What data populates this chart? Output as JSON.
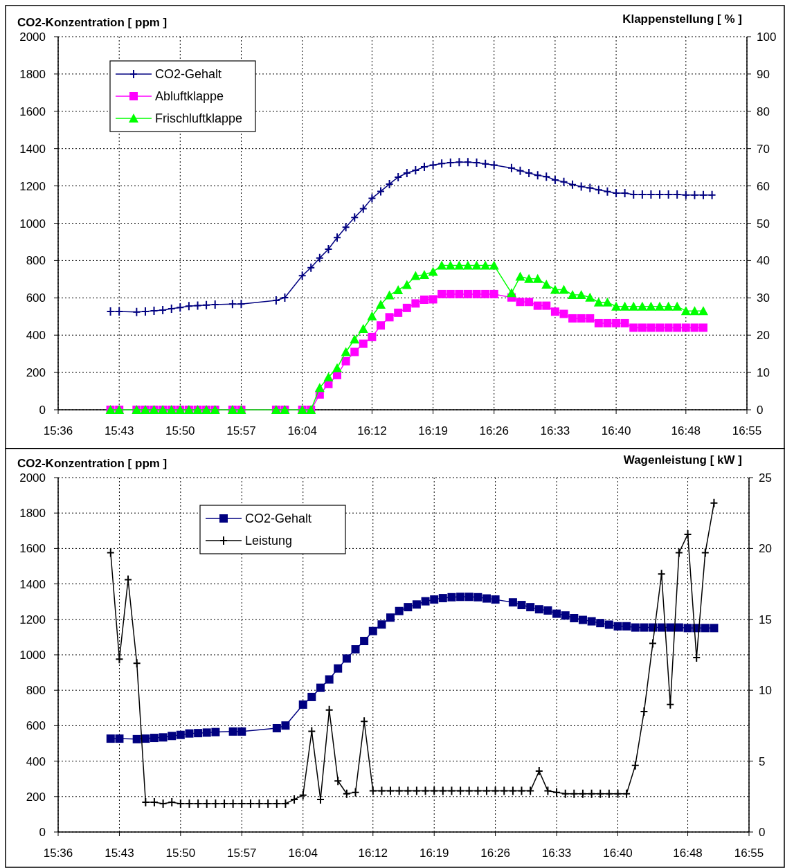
{
  "chart_data": [
    {
      "type": "line",
      "ylabel": "CO2-Konzentration [ ppm ]",
      "y2label": "Klappenstellung [ % ]",
      "xlim": [
        15.6,
        16.9167
      ],
      "xticks": [
        {
          "value": 15.6,
          "label": "15:36"
        },
        {
          "value": 15.7167,
          "label": "15:43"
        },
        {
          "value": 15.8333,
          "label": "15:50"
        },
        {
          "value": 15.95,
          "label": "15:57"
        },
        {
          "value": 16.0667,
          "label": "16:04"
        },
        {
          "value": 16.2,
          "label": "16:12"
        },
        {
          "value": 16.3167,
          "label": "16:19"
        },
        {
          "value": 16.4333,
          "label": "16:26"
        },
        {
          "value": 16.55,
          "label": "16:33"
        },
        {
          "value": 16.6667,
          "label": "16:40"
        },
        {
          "value": 16.8,
          "label": "16:48"
        },
        {
          "value": 16.9167,
          "label": "16:55"
        }
      ],
      "ylim": [
        0,
        2000
      ],
      "yticks": [
        0,
        200,
        400,
        600,
        800,
        1000,
        1200,
        1400,
        1600,
        1800,
        2000
      ],
      "y2lim": [
        0,
        100
      ],
      "y2ticks": [
        0,
        10,
        20,
        30,
        40,
        50,
        60,
        70,
        80,
        90,
        100
      ],
      "grid": true,
      "legend": "top left",
      "series": [
        {
          "name": "CO2-Gehalt",
          "color": "#000080",
          "marker": "cross",
          "x": [
            15.7,
            15.7167,
            15.75,
            15.7667,
            15.7833,
            15.8,
            15.8167,
            15.8333,
            15.85,
            15.8667,
            15.8833,
            15.9,
            15.9333,
            15.95,
            16.0167,
            16.0333,
            16.0667,
            16.0833,
            16.1,
            16.1167,
            16.1333,
            16.15,
            16.1667,
            16.1833,
            16.2,
            16.2167,
            16.2333,
            16.25,
            16.2667,
            16.2833,
            16.3,
            16.3167,
            16.3333,
            16.35,
            16.3667,
            16.3833,
            16.4,
            16.4167,
            16.4333,
            16.4667,
            16.4833,
            16.5,
            16.5167,
            16.5333,
            16.55,
            16.5667,
            16.5833,
            16.6,
            16.6167,
            16.6333,
            16.65,
            16.6667,
            16.6833,
            16.7,
            16.7167,
            16.7333,
            16.75,
            16.7667,
            16.7833,
            16.8,
            16.8167,
            16.8333,
            16.85
          ],
          "values": [
            527,
            527,
            524,
            527,
            531,
            534,
            542,
            548,
            556,
            558,
            561,
            564,
            567,
            567,
            586,
            601,
            719,
            762,
            814,
            861,
            923,
            979,
            1031,
            1078,
            1134,
            1171,
            1210,
            1247,
            1269,
            1284,
            1302,
            1312,
            1320,
            1325,
            1327,
            1327,
            1325,
            1318,
            1312,
            1296,
            1281,
            1269,
            1257,
            1250,
            1232,
            1222,
            1207,
            1197,
            1189,
            1179,
            1170,
            1161,
            1161,
            1154,
            1154,
            1154,
            1154,
            1154,
            1154,
            1151,
            1151,
            1151,
            1151
          ]
        },
        {
          "name": "Abluftklappe",
          "color": "#ff00ff",
          "marker": "square",
          "axis": "y2",
          "x": [
            15.7,
            15.7167,
            15.75,
            15.7667,
            15.7833,
            15.8,
            15.8167,
            15.8333,
            15.85,
            15.8667,
            15.8833,
            15.9,
            15.9333,
            15.95,
            16.0167,
            16.0333,
            16.0667,
            16.0833,
            16.1,
            16.1167,
            16.1333,
            16.15,
            16.1667,
            16.1833,
            16.2,
            16.2167,
            16.2333,
            16.25,
            16.2667,
            16.2833,
            16.3,
            16.3167,
            16.3333,
            16.35,
            16.3667,
            16.3833,
            16.4,
            16.4167,
            16.4333,
            16.4667,
            16.4833,
            16.5,
            16.5167,
            16.5333,
            16.55,
            16.5667,
            16.5833,
            16.6,
            16.6167,
            16.6333,
            16.65,
            16.6667,
            16.6833,
            16.7,
            16.7167,
            16.7333,
            16.75,
            16.7667,
            16.7833,
            16.8,
            16.8167,
            16.8333
          ],
          "values": [
            0,
            0,
            0,
            0,
            0,
            0,
            0,
            0,
            0,
            0,
            0,
            0,
            0,
            0,
            0,
            0,
            0,
            0,
            4.1,
            6.9,
            9.3,
            13.0,
            15.5,
            17.7,
            19.5,
            22.6,
            24.8,
            26.0,
            27.3,
            28.5,
            29.5,
            29.6,
            31.0,
            31.0,
            31.0,
            31.0,
            31.0,
            31.0,
            31.0,
            30.1,
            28.9,
            28.9,
            27.9,
            27.9,
            26.3,
            25.7,
            24.5,
            24.5,
            24.5,
            23.2,
            23.2,
            23.2,
            23.2,
            22.0,
            22.0,
            22.0,
            22.0,
            22.0,
            22.0,
            22.0,
            22.0,
            22.0
          ]
        },
        {
          "name": "Frischluftklappe",
          "color": "#00ff00",
          "marker": "triangle",
          "axis": "y2",
          "x": [
            15.7,
            15.7167,
            15.75,
            15.7667,
            15.7833,
            15.8,
            15.8167,
            15.8333,
            15.85,
            15.8667,
            15.8833,
            15.9,
            15.9333,
            15.95,
            16.0167,
            16.0333,
            16.0667,
            16.0833,
            16.1,
            16.1167,
            16.1333,
            16.15,
            16.1667,
            16.1833,
            16.2,
            16.2167,
            16.2333,
            16.25,
            16.2667,
            16.2833,
            16.3,
            16.3167,
            16.3333,
            16.35,
            16.3667,
            16.3833,
            16.4,
            16.4167,
            16.4333,
            16.4667,
            16.4833,
            16.5,
            16.5167,
            16.5333,
            16.55,
            16.5667,
            16.5833,
            16.6,
            16.6167,
            16.6333,
            16.65,
            16.6667,
            16.6833,
            16.7,
            16.7167,
            16.7333,
            16.75,
            16.7667,
            16.7833,
            16.8,
            16.8167,
            16.8333
          ],
          "values": [
            0,
            0,
            0,
            0,
            0,
            0,
            0,
            0,
            0,
            0,
            0,
            0,
            0,
            0,
            0,
            0,
            0,
            0,
            5.9,
            8.7,
            11.2,
            15.5,
            18.9,
            21.7,
            25.1,
            28.2,
            30.7,
            32.1,
            33.5,
            35.9,
            36.2,
            37.0,
            38.7,
            38.7,
            38.7,
            38.7,
            38.7,
            38.7,
            38.7,
            31.3,
            35.7,
            35.1,
            35.1,
            33.6,
            32.2,
            32.2,
            30.8,
            30.8,
            30.1,
            28.8,
            28.8,
            27.7,
            27.7,
            27.7,
            27.7,
            27.7,
            27.7,
            27.7,
            27.7,
            26.5,
            26.5,
            26.5
          ]
        }
      ]
    },
    {
      "type": "line",
      "ylabel": "CO2-Konzentration [ ppm ]",
      "y2label": "Wagenleistung [ kW ]",
      "xlim": [
        15.6,
        16.9167
      ],
      "xticks": [
        {
          "value": 15.6,
          "label": "15:36"
        },
        {
          "value": 15.7167,
          "label": "15:43"
        },
        {
          "value": 15.8333,
          "label": "15:50"
        },
        {
          "value": 15.95,
          "label": "15:57"
        },
        {
          "value": 16.0667,
          "label": "16:04"
        },
        {
          "value": 16.2,
          "label": "16:12"
        },
        {
          "value": 16.3167,
          "label": "16:19"
        },
        {
          "value": 16.4333,
          "label": "16:26"
        },
        {
          "value": 16.55,
          "label": "16:33"
        },
        {
          "value": 16.6667,
          "label": "16:40"
        },
        {
          "value": 16.8,
          "label": "16:48"
        },
        {
          "value": 16.9167,
          "label": "16:55"
        }
      ],
      "ylim": [
        0,
        2000
      ],
      "yticks": [
        0,
        200,
        400,
        600,
        800,
        1000,
        1200,
        1400,
        1600,
        1800,
        2000
      ],
      "y2lim": [
        0,
        25
      ],
      "y2ticks": [
        0,
        5,
        10,
        15,
        20,
        25
      ],
      "grid": true,
      "legend": "top",
      "series": [
        {
          "name": "CO2-Gehalt",
          "color": "#000080",
          "marker": "square",
          "x": [
            15.7,
            15.7167,
            15.75,
            15.7667,
            15.7833,
            15.8,
            15.8167,
            15.8333,
            15.85,
            15.8667,
            15.8833,
            15.9,
            15.9333,
            15.95,
            16.0167,
            16.0333,
            16.0667,
            16.0833,
            16.1,
            16.1167,
            16.1333,
            16.15,
            16.1667,
            16.1833,
            16.2,
            16.2167,
            16.2333,
            16.25,
            16.2667,
            16.2833,
            16.3,
            16.3167,
            16.3333,
            16.35,
            16.3667,
            16.3833,
            16.4,
            16.4167,
            16.4333,
            16.4667,
            16.4833,
            16.5,
            16.5167,
            16.5333,
            16.55,
            16.5667,
            16.5833,
            16.6,
            16.6167,
            16.6333,
            16.65,
            16.6667,
            16.6833,
            16.7,
            16.7167,
            16.7333,
            16.75,
            16.7667,
            16.7833,
            16.8,
            16.8167,
            16.8333,
            16.85
          ],
          "values": [
            527,
            527,
            524,
            527,
            531,
            534,
            542,
            548,
            556,
            558,
            561,
            564,
            567,
            567,
            586,
            601,
            719,
            762,
            814,
            861,
            923,
            979,
            1031,
            1078,
            1134,
            1171,
            1210,
            1247,
            1269,
            1284,
            1302,
            1312,
            1320,
            1325,
            1327,
            1327,
            1325,
            1318,
            1312,
            1296,
            1281,
            1269,
            1257,
            1250,
            1232,
            1222,
            1207,
            1197,
            1189,
            1179,
            1170,
            1161,
            1161,
            1154,
            1154,
            1154,
            1154,
            1154,
            1154,
            1151,
            1151,
            1151,
            1151
          ]
        },
        {
          "name": "Leistung",
          "color": "#000000",
          "marker": "cross",
          "axis": "y2",
          "x": [
            15.7,
            15.7167,
            15.7333,
            15.75,
            15.7667,
            15.7833,
            15.8,
            15.8167,
            15.8333,
            15.85,
            15.8667,
            15.8833,
            15.9,
            15.9167,
            15.9333,
            15.95,
            15.9667,
            15.9833,
            16.0,
            16.0167,
            16.0333,
            16.05,
            16.0667,
            16.0833,
            16.1,
            16.1167,
            16.1333,
            16.15,
            16.1667,
            16.1833,
            16.2,
            16.2167,
            16.2333,
            16.25,
            16.2667,
            16.2833,
            16.3,
            16.3167,
            16.3333,
            16.35,
            16.3667,
            16.3833,
            16.4,
            16.4167,
            16.4333,
            16.45,
            16.4667,
            16.4833,
            16.5,
            16.5167,
            16.5333,
            16.55,
            16.5667,
            16.5833,
            16.6,
            16.6167,
            16.6333,
            16.65,
            16.6667,
            16.6833,
            16.7,
            16.7167,
            16.7333,
            16.75,
            16.7667,
            16.7833,
            16.8,
            16.8167,
            16.8333,
            16.85
          ],
          "values": [
            19.7,
            12.2,
            17.8,
            11.9,
            2.1,
            2.1,
            2.0,
            2.1,
            2.0,
            2.0,
            2.0,
            2.0,
            2.0,
            2.0,
            2.0,
            2.0,
            2.0,
            2.0,
            2.0,
            2.0,
            2.0,
            2.3,
            2.6,
            7.1,
            2.3,
            8.6,
            3.6,
            2.7,
            2.8,
            7.8,
            2.9,
            2.9,
            2.9,
            2.9,
            2.9,
            2.9,
            2.9,
            2.9,
            2.9,
            2.9,
            2.9,
            2.9,
            2.9,
            2.9,
            2.9,
            2.9,
            2.9,
            2.9,
            2.9,
            4.3,
            2.9,
            2.8,
            2.7,
            2.7,
            2.7,
            2.7,
            2.7,
            2.7,
            2.7,
            2.7,
            4.7,
            8.5,
            13.3,
            18.2,
            9.0,
            19.7,
            21.0,
            12.3,
            19.7,
            23.2
          ]
        }
      ]
    }
  ]
}
